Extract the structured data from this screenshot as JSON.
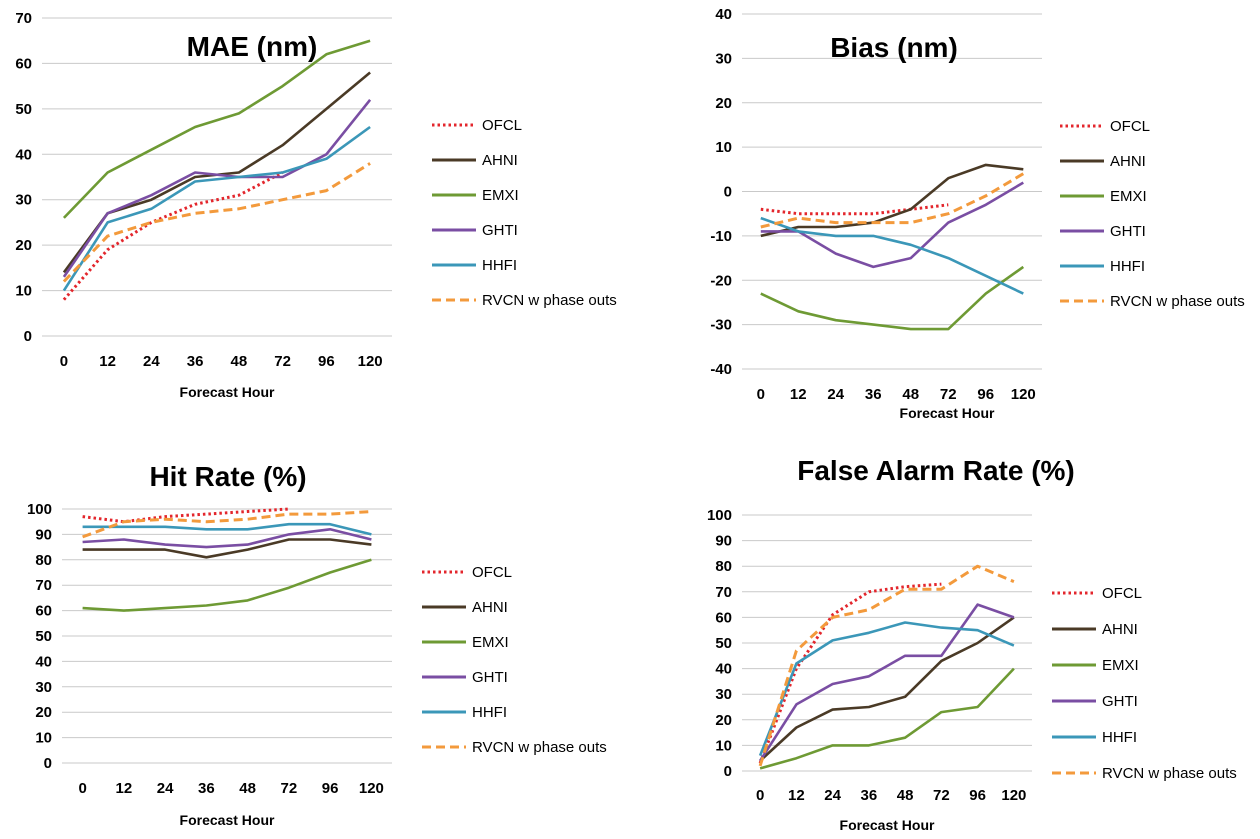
{
  "colors": {
    "OFCL": "#e3262c",
    "AHNI": "#4a3a26",
    "EMXI": "#6e9a34",
    "GHTI": "#7a4ea3",
    "HHFI": "#3b97b8",
    "RVCN w phase outs": "#f39a3c",
    "grid": "#c9c9c9"
  },
  "chart_data": [
    {
      "type": "line",
      "title": "MAE (nm)",
      "xlabel": "Forecast Hour",
      "ylabel": "",
      "categories": [
        "0",
        "12",
        "24",
        "36",
        "48",
        "72",
        "96",
        "120"
      ],
      "ylim": [
        0,
        70
      ],
      "yticks": [
        0,
        10,
        20,
        30,
        40,
        50,
        60,
        70
      ],
      "grid": true,
      "legend_position": "right",
      "series": [
        {
          "name": "OFCL",
          "style": "dotted",
          "values": [
            8,
            19,
            25,
            29,
            31,
            36,
            null,
            null
          ]
        },
        {
          "name": "AHNI",
          "style": "solid",
          "values": [
            14,
            27,
            30,
            35,
            36,
            42,
            50,
            58
          ]
        },
        {
          "name": "EMXI",
          "style": "solid",
          "values": [
            26,
            36,
            41,
            46,
            49,
            55,
            62,
            65
          ]
        },
        {
          "name": "GHTI",
          "style": "solid",
          "values": [
            13,
            27,
            31,
            36,
            35,
            35,
            40,
            52
          ]
        },
        {
          "name": "HHFI",
          "style": "solid",
          "values": [
            10,
            25,
            28,
            34,
            35,
            36,
            39,
            46
          ]
        },
        {
          "name": "RVCN w phase outs",
          "style": "dashed",
          "values": [
            12,
            22,
            25,
            27,
            28,
            30,
            32,
            38
          ]
        }
      ]
    },
    {
      "type": "line",
      "title": "Bias (nm)",
      "xlabel": "Forecast Hour",
      "ylabel": "",
      "categories": [
        "0",
        "12",
        "24",
        "36",
        "48",
        "72",
        "96",
        "120"
      ],
      "ylim": [
        -40,
        40
      ],
      "yticks": [
        -40,
        -30,
        -20,
        -10,
        0,
        10,
        20,
        30,
        40
      ],
      "grid": true,
      "legend_position": "right",
      "series": [
        {
          "name": "OFCL",
          "style": "dotted",
          "values": [
            -4,
            -5,
            -5,
            -5,
            -4,
            -3,
            null,
            null
          ]
        },
        {
          "name": "AHNI",
          "style": "solid",
          "values": [
            -10,
            -8,
            -8,
            -7,
            -4,
            3,
            6,
            5
          ]
        },
        {
          "name": "EMXI",
          "style": "solid",
          "values": [
            -23,
            -27,
            -29,
            -30,
            -31,
            -31,
            -23,
            -17
          ]
        },
        {
          "name": "GHTI",
          "style": "solid",
          "values": [
            -9,
            -9,
            -14,
            -17,
            -15,
            -7,
            -3,
            2
          ]
        },
        {
          "name": "HHFI",
          "style": "solid",
          "values": [
            -6,
            -9,
            -10,
            -10,
            -12,
            -15,
            -19,
            -23
          ]
        },
        {
          "name": "RVCN w phase outs",
          "style": "dashed",
          "values": [
            -8,
            -6,
            -7,
            -7,
            -7,
            -5,
            -1,
            4
          ]
        }
      ]
    },
    {
      "type": "line",
      "title": "Hit Rate (%)",
      "xlabel": "Forecast Hour",
      "ylabel": "",
      "categories": [
        "0",
        "12",
        "24",
        "36",
        "48",
        "72",
        "96",
        "120"
      ],
      "ylim": [
        0,
        100
      ],
      "yticks": [
        0,
        10,
        20,
        30,
        40,
        50,
        60,
        70,
        80,
        90,
        100
      ],
      "grid": true,
      "legend_position": "right",
      "series": [
        {
          "name": "OFCL",
          "style": "dotted",
          "values": [
            97,
            95,
            97,
            98,
            99,
            100,
            null,
            null
          ]
        },
        {
          "name": "AHNI",
          "style": "solid",
          "values": [
            84,
            84,
            84,
            81,
            84,
            88,
            88,
            86
          ]
        },
        {
          "name": "EMXI",
          "style": "solid",
          "values": [
            61,
            60,
            61,
            62,
            64,
            69,
            75,
            80
          ]
        },
        {
          "name": "GHTI",
          "style": "solid",
          "values": [
            87,
            88,
            86,
            85,
            86,
            90,
            92,
            88
          ]
        },
        {
          "name": "HHFI",
          "style": "solid",
          "values": [
            93,
            93,
            93,
            92,
            92,
            94,
            94,
            90
          ]
        },
        {
          "name": "RVCN w phase outs",
          "style": "dashed",
          "values": [
            89,
            95,
            96,
            95,
            96,
            98,
            98,
            99
          ]
        }
      ]
    },
    {
      "type": "line",
      "title": "False Alarm Rate (%)",
      "xlabel": "Forecast Hour",
      "ylabel": "",
      "categories": [
        "0",
        "12",
        "24",
        "36",
        "48",
        "72",
        "96",
        "120"
      ],
      "ylim": [
        0,
        100
      ],
      "yticks": [
        0,
        10,
        20,
        30,
        40,
        50,
        60,
        70,
        80,
        90,
        100
      ],
      "grid": true,
      "legend_position": "right",
      "series": [
        {
          "name": "OFCL",
          "style": "dotted",
          "values": [
            3,
            40,
            61,
            70,
            72,
            73,
            null,
            null
          ]
        },
        {
          "name": "AHNI",
          "style": "solid",
          "values": [
            4,
            17,
            24,
            25,
            29,
            43,
            50,
            60
          ]
        },
        {
          "name": "EMXI",
          "style": "solid",
          "values": [
            1,
            5,
            10,
            10,
            13,
            23,
            25,
            40
          ]
        },
        {
          "name": "GHTI",
          "style": "solid",
          "values": [
            4,
            26,
            34,
            37,
            45,
            45,
            65,
            60
          ]
        },
        {
          "name": "HHFI",
          "style": "solid",
          "values": [
            6,
            42,
            51,
            54,
            58,
            56,
            55,
            49
          ]
        },
        {
          "name": "RVCN w phase outs",
          "style": "dashed",
          "values": [
            2,
            47,
            60,
            63,
            71,
            71,
            80,
            74
          ]
        }
      ]
    }
  ]
}
